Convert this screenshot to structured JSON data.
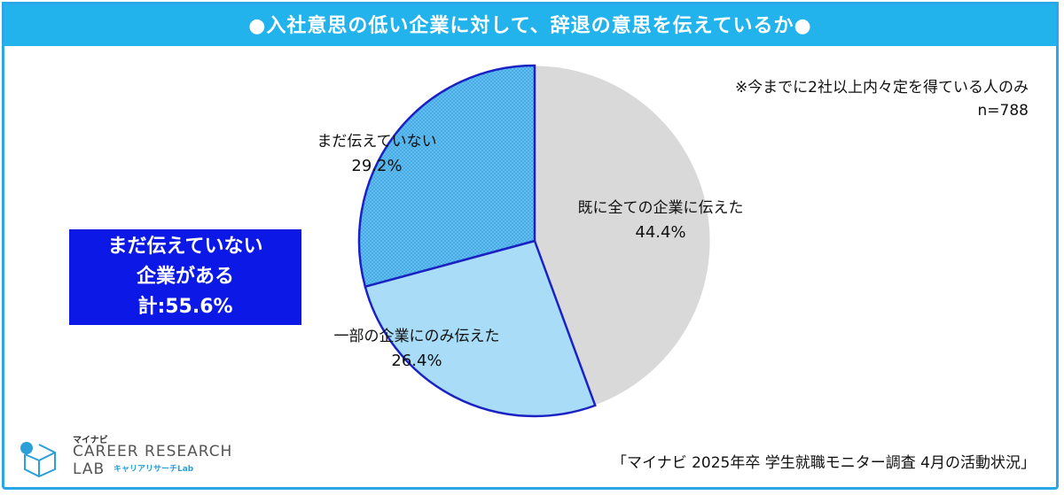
{
  "title": "●入社意思の低い企業に対して、辞退の意思を伝えているか●",
  "note": {
    "line1": "※今までに2社以上内々定を得ている人のみ",
    "line2": "n=788"
  },
  "callout": {
    "line1": "まだ伝えていない",
    "line2": "企業がある",
    "line3": "計:55.6%"
  },
  "source": "「マイナビ 2025年卒 学生就職モニター調査 4月の活動状況」",
  "logo": {
    "small": "マイナビ",
    "line1": "CAREER RESEARCH",
    "line2": "LAB",
    "sub": "キャリアリサーチLab"
  },
  "colors": {
    "title_bg": "#22b3ec",
    "callout_bg": "#0b18e6",
    "slice_told_all": "#d9d9d9",
    "slice_told_some": "#a8dcf7",
    "slice_not_yet": "#3aa8e6",
    "slice_outline": "#1a22c4"
  },
  "chart_data": {
    "type": "pie",
    "start": "12 o'clock",
    "direction": "clockwise",
    "slices": [
      {
        "label": "既に全ての企業に伝えた",
        "value": 44.4,
        "value_label": "44.4%",
        "color": "#d9d9d9",
        "pattern": "none"
      },
      {
        "label": "一部の企業にのみ伝えた",
        "value": 26.4,
        "value_label": "26.4%",
        "color": "#a8dcf7",
        "pattern": "none"
      },
      {
        "label": "まだ伝えていない",
        "value": 29.2,
        "value_label": "29.2%",
        "color": "#3aa8e6",
        "pattern": "crosshatch"
      }
    ]
  }
}
